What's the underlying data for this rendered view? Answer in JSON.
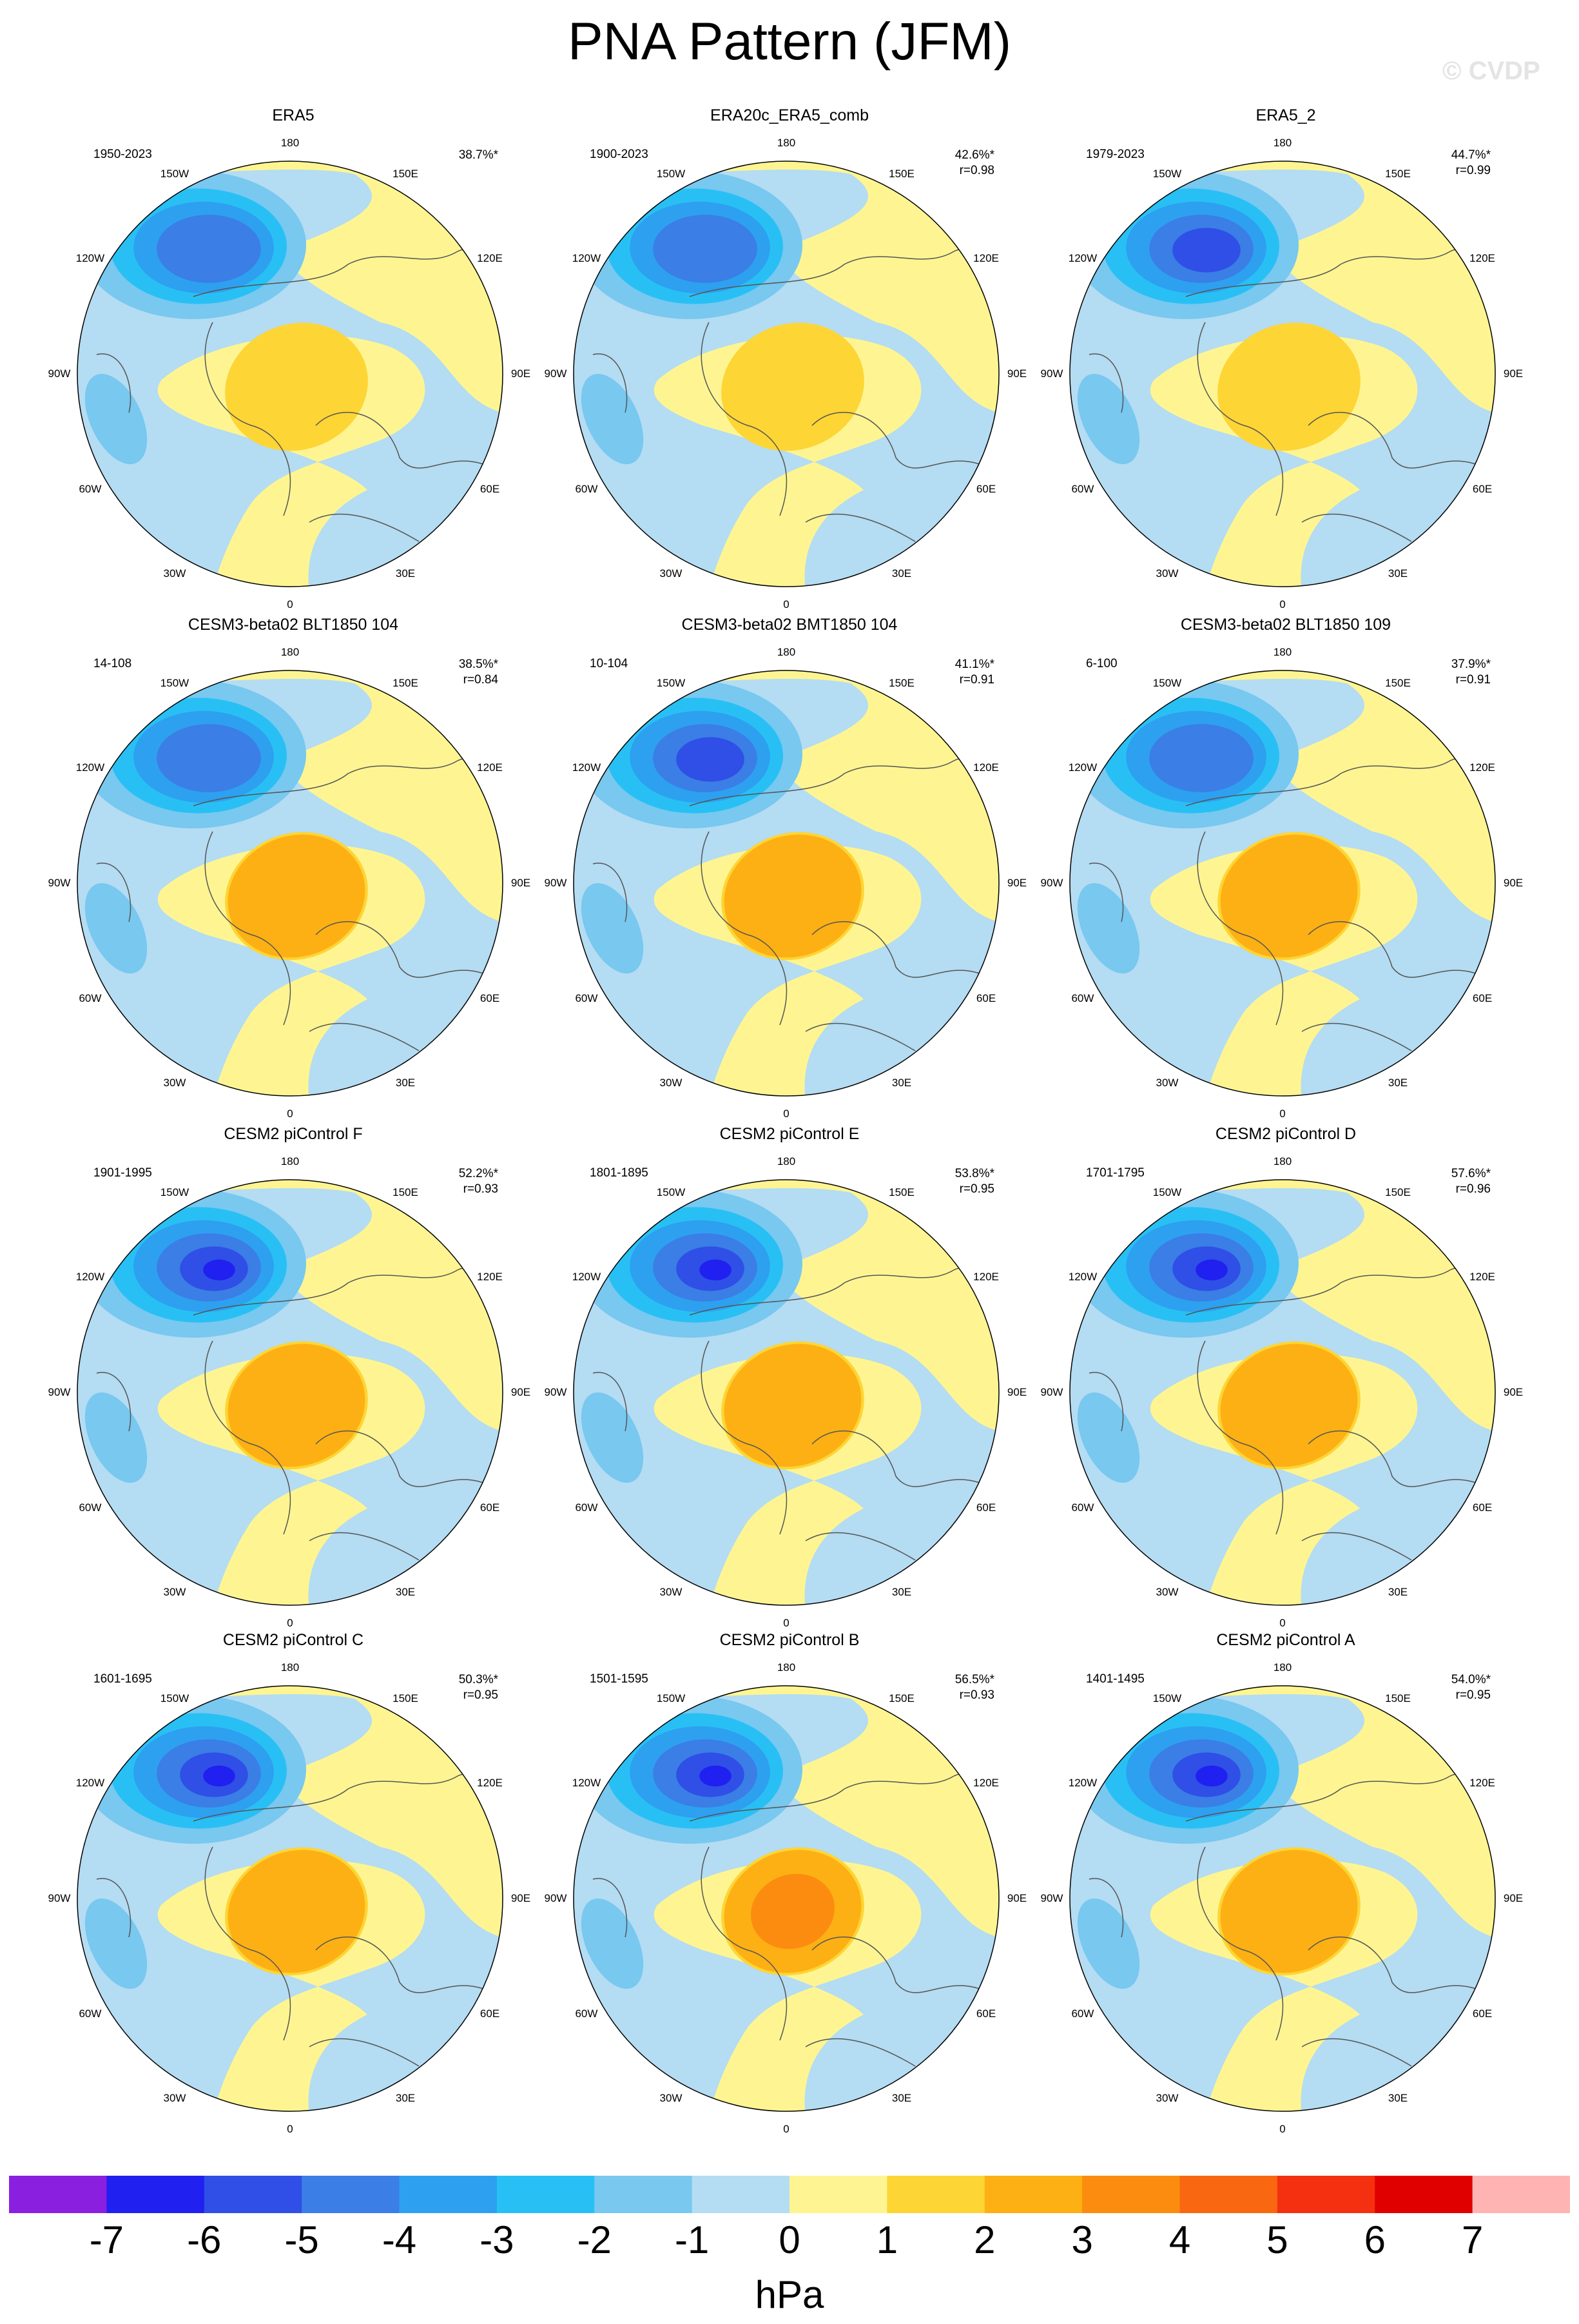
{
  "title": "PNA Pattern (JFM)",
  "watermark": "© CVDP",
  "unit": "hPa",
  "lon_labels": [
    "180",
    "150E",
    "120E",
    "90E",
    "60E",
    "30E",
    "0",
    "30W",
    "60W",
    "90W",
    "120W",
    "150W"
  ],
  "colorbar": {
    "tick_labels": [
      "-7",
      "-6",
      "-5",
      "-4",
      "-3",
      "-2",
      "-1",
      "0",
      "1",
      "2",
      "3",
      "4",
      "5",
      "6",
      "7"
    ],
    "colors": [
      "#8a1fe0",
      "#2020f0",
      "#2f4fe6",
      "#3a7ee6",
      "#2ea0f0",
      "#28c0f4",
      "#78c8f0",
      "#b4dcf2",
      "#fef592",
      "#fdd535",
      "#fdb014",
      "#fc8c10",
      "#f96810",
      "#f43010",
      "#e00000",
      "#ffb4b4"
    ]
  },
  "panels": [
    {
      "title": "ERA5",
      "period": "1950-2023",
      "pct": "38.7%*",
      "r": "",
      "neg": 2,
      "pos": 1
    },
    {
      "title": "ERA20c_ERA5_comb",
      "period": "1900-2023",
      "pct": "42.6%*",
      "r": "r=0.98",
      "neg": 2,
      "pos": 1
    },
    {
      "title": "ERA5_2",
      "period": "1979-2023",
      "pct": "44.7%*",
      "r": "r=0.99",
      "neg": 3,
      "pos": 1
    },
    {
      "title": "CESM3-beta02 BLT1850 104",
      "period": "14-108",
      "pct": "38.5%*",
      "r": "r=0.84",
      "neg": 2,
      "pos": 2
    },
    {
      "title": "CESM3-beta02 BMT1850 104",
      "period": "10-104",
      "pct": "41.1%*",
      "r": "r=0.91",
      "neg": 3,
      "pos": 2
    },
    {
      "title": "CESM3-beta02 BLT1850 109",
      "period": "6-100",
      "pct": "37.9%*",
      "r": "r=0.91",
      "neg": 2,
      "pos": 2
    },
    {
      "title": "CESM2 piControl F",
      "period": "1901-1995",
      "pct": "52.2%*",
      "r": "r=0.93",
      "neg": 4,
      "pos": 2
    },
    {
      "title": "CESM2 piControl E",
      "period": "1801-1895",
      "pct": "53.8%*",
      "r": "r=0.95",
      "neg": 4,
      "pos": 2
    },
    {
      "title": "CESM2 piControl D",
      "period": "1701-1795",
      "pct": "57.6%*",
      "r": "r=0.96",
      "neg": 4,
      "pos": 2
    },
    {
      "title": "CESM2 piControl C",
      "period": "1601-1695",
      "pct": "50.3%*",
      "r": "r=0.95",
      "neg": 4,
      "pos": 2
    },
    {
      "title": "CESM2 piControl B",
      "period": "1501-1595",
      "pct": "56.5%*",
      "r": "r=0.93",
      "neg": 4,
      "pos": 3
    },
    {
      "title": "CESM2 piControl A",
      "period": "1401-1495",
      "pct": "54.0%*",
      "r": "r=0.95",
      "neg": 4,
      "pos": 2
    }
  ]
}
